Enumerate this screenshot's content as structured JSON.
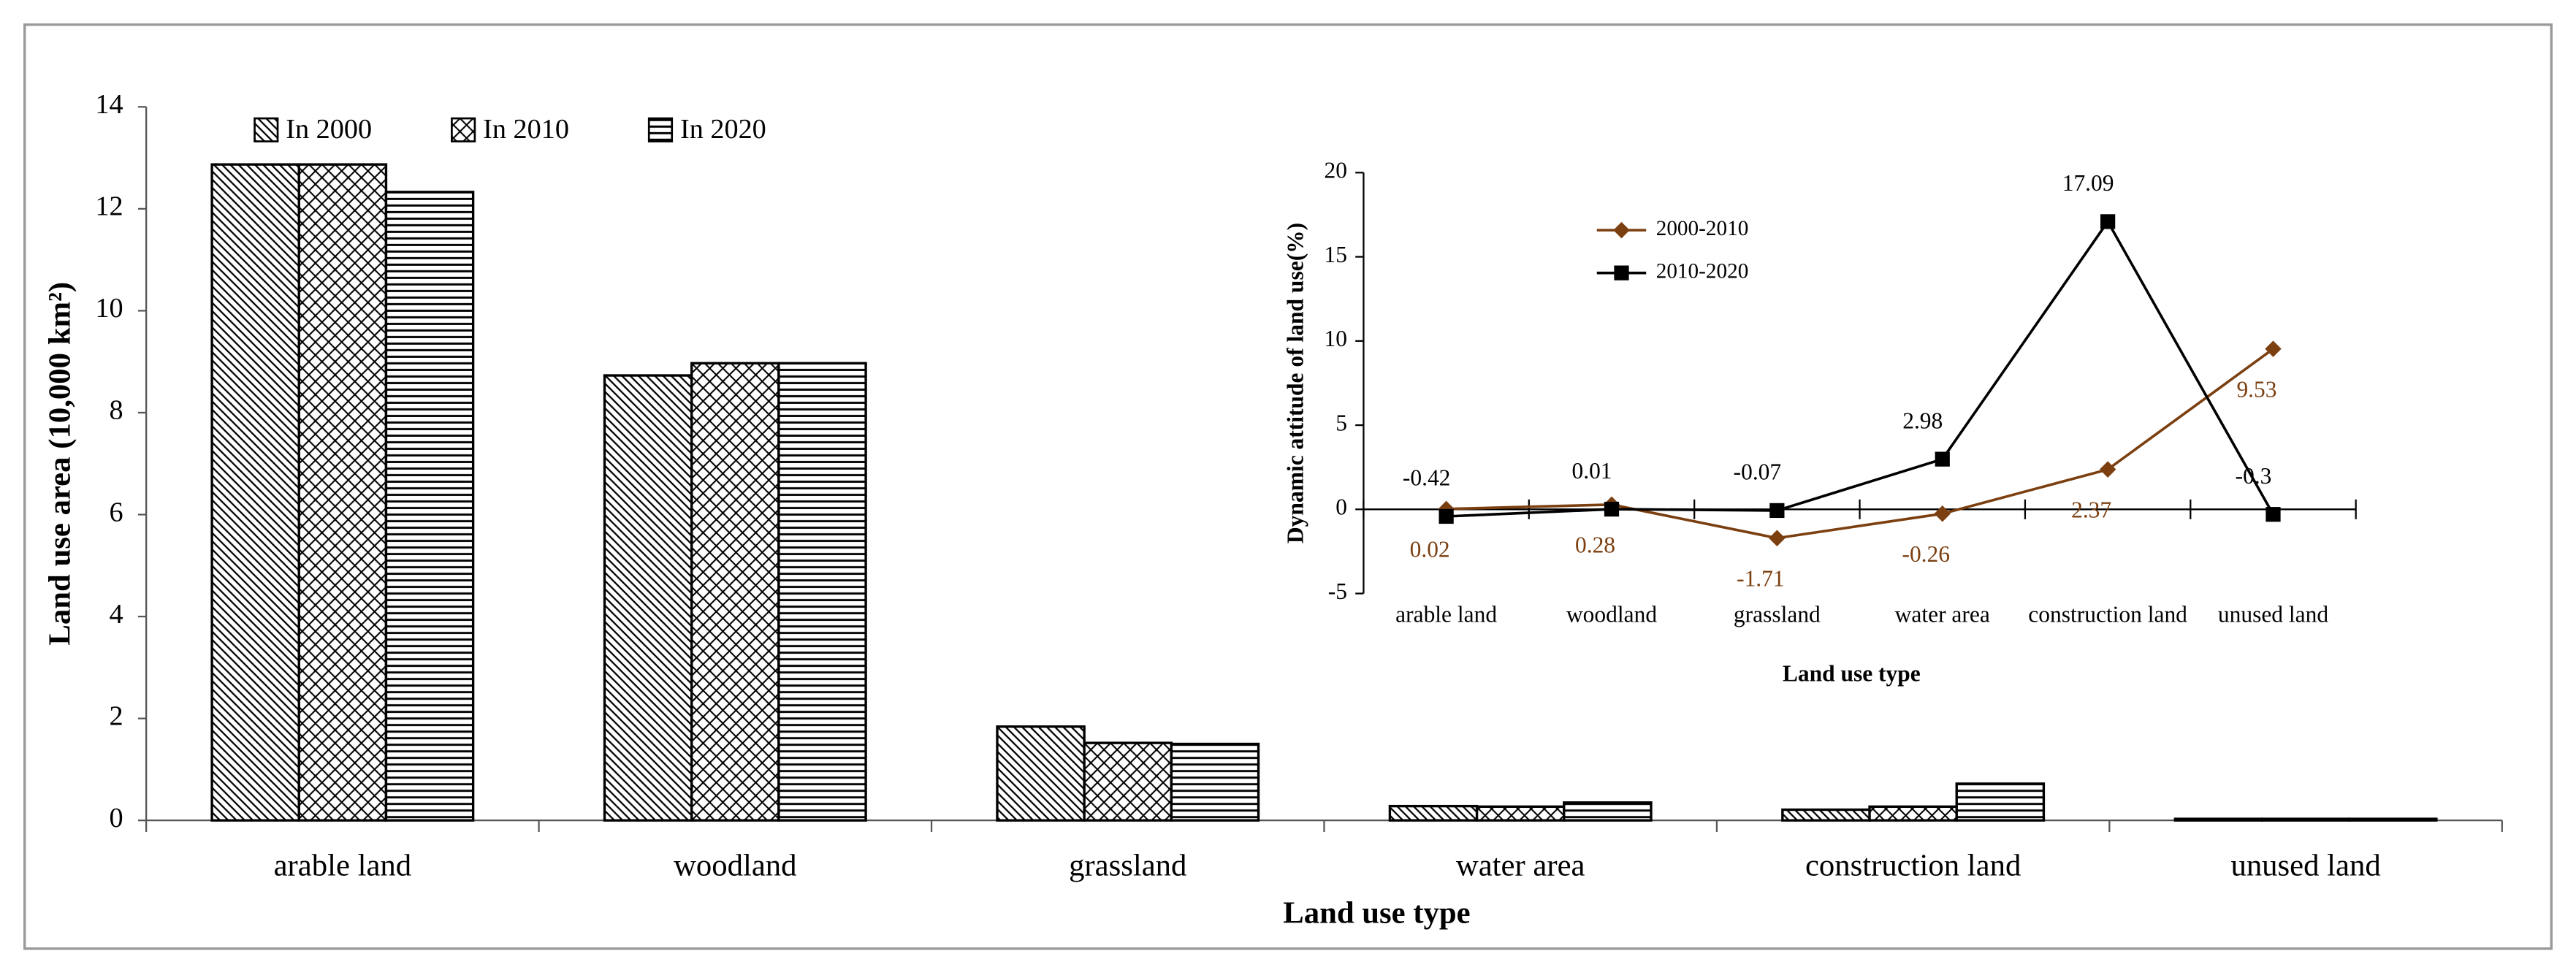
{
  "chart_data": [
    {
      "type": "bar",
      "x_label": "Land use type",
      "y_label": "Land use area (10,000 km²)",
      "categories": [
        "arable land",
        "woodland",
        "grassland",
        "water area",
        "construction land",
        "unused land"
      ],
      "series": [
        {
          "name": "In 2000",
          "color": "#000000",
          "pattern": "diagonal",
          "values": [
            12.87,
            8.73,
            1.84,
            0.28,
            0.21,
            0.03
          ]
        },
        {
          "name": "In 2010",
          "color": "#000000",
          "pattern": "crosshatch",
          "values": [
            12.87,
            8.97,
            1.52,
            0.27,
            0.27,
            0.03
          ]
        },
        {
          "name": "In 2020",
          "color": "#000000",
          "pattern": "horizontal",
          "values": [
            12.33,
            8.97,
            1.5,
            0.35,
            0.72,
            0.03
          ]
        }
      ],
      "ylim": [
        0,
        14
      ],
      "yticks": [
        0,
        2,
        4,
        6,
        8,
        10,
        12,
        14
      ]
    },
    {
      "type": "line",
      "x_label": "Land use type",
      "y_label": "Dynamic attitude of land use(%)",
      "categories": [
        "arable land",
        "woodland",
        "grassland",
        "water area",
        "construction land",
        "unused land"
      ],
      "series": [
        {
          "name": "2000-2010",
          "color": "#7b3f10",
          "marker": "diamond",
          "values": [
            0.02,
            0.28,
            -1.71,
            -0.26,
            2.37,
            9.53
          ]
        },
        {
          "name": "2010-2020",
          "color": "#000000",
          "marker": "square",
          "values": [
            -0.42,
            0.01,
            -0.07,
            2.98,
            17.09,
            -0.3
          ]
        }
      ],
      "ylim": [
        -5,
        20
      ],
      "yticks": [
        -5,
        0,
        5,
        10,
        15,
        20
      ]
    }
  ]
}
